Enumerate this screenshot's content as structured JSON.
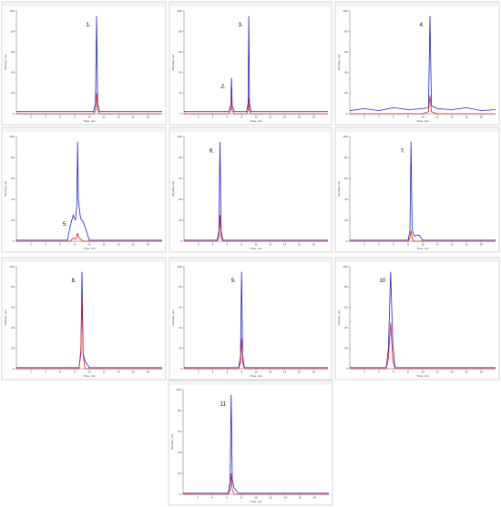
{
  "chart_data": [
    {
      "type": "line",
      "labels": [
        "1."
      ],
      "xlabel": "Time, min",
      "ylabel": "Intensity, cps",
      "xlim": [
        0,
        20
      ],
      "xticks": [
        2,
        4,
        6,
        8,
        10,
        12,
        14,
        16,
        18
      ],
      "ylim": [
        0,
        100
      ],
      "yticks": [
        0,
        20,
        40,
        60,
        80,
        100
      ],
      "x": [
        0,
        10.6,
        10.85,
        11,
        11.15,
        11.4,
        20
      ],
      "series": [
        {
          "color": "#2020d0",
          "values": [
            2,
            2,
            10,
            95,
            10,
            2,
            2
          ]
        },
        {
          "color": "#e02020",
          "values": [
            0,
            0,
            3,
            20,
            3,
            0,
            0
          ]
        }
      ]
    },
    {
      "type": "line",
      "labels": [
        "2.",
        "3."
      ],
      "xlabel": "Time, min",
      "ylabel": "Intensity, cps",
      "xlim": [
        0,
        20
      ],
      "xticks": [
        2,
        4,
        6,
        8,
        10,
        12,
        14,
        16,
        18
      ],
      "ylim": [
        0,
        100
      ],
      "yticks": [
        0,
        20,
        40,
        60,
        80,
        100
      ],
      "x": [
        0,
        6.2,
        6.5,
        6.6,
        6.7,
        7,
        8.7,
        8.9,
        9,
        9.1,
        9.3,
        20
      ],
      "series": [
        {
          "color": "#2020d0",
          "values": [
            2,
            2,
            8,
            35,
            8,
            2,
            2,
            10,
            95,
            10,
            2,
            2
          ]
        },
        {
          "color": "#e02020",
          "values": [
            0,
            0,
            3,
            18,
            3,
            0,
            0,
            3,
            15,
            3,
            0,
            0
          ]
        }
      ]
    },
    {
      "type": "line",
      "labels": [
        "4."
      ],
      "xlabel": "Time, min",
      "ylabel": "Intensity, cps",
      "xlim": [
        0,
        20
      ],
      "xticks": [
        2,
        4,
        6,
        8,
        10,
        12,
        14,
        16,
        18
      ],
      "ylim": [
        0,
        100
      ],
      "yticks": [
        0,
        20,
        40,
        60,
        80,
        100
      ],
      "x": [
        0,
        2,
        4,
        6,
        8,
        10,
        10.8,
        11,
        11.2,
        12,
        14,
        16,
        18,
        20
      ],
      "series": [
        {
          "color": "#2020d0",
          "values": [
            3,
            5,
            3,
            6,
            4,
            5,
            6,
            95,
            8,
            5,
            4,
            6,
            3,
            4
          ]
        },
        {
          "color": "#e02020",
          "values": [
            0,
            0,
            0,
            0,
            0,
            0,
            2,
            18,
            2,
            0,
            0,
            0,
            0,
            0
          ]
        }
      ]
    },
    {
      "type": "line",
      "labels": [
        "5."
      ],
      "xlabel": "Time, min",
      "ylabel": "Intensity, cps",
      "xlim": [
        0,
        20
      ],
      "xticks": [
        2,
        4,
        6,
        8,
        10,
        12,
        14,
        16,
        18
      ],
      "ylim": [
        0,
        100
      ],
      "yticks": [
        0,
        20,
        40,
        60,
        80,
        100
      ],
      "x": [
        0,
        7,
        7.4,
        7.8,
        8.1,
        8.3,
        8.4,
        8.5,
        8.8,
        9.2,
        9.6,
        10,
        20
      ],
      "series": [
        {
          "color": "#2020d0",
          "values": [
            1,
            1,
            15,
            25,
            20,
            35,
            95,
            40,
            22,
            18,
            10,
            1,
            1
          ]
        },
        {
          "color": "#e02020",
          "values": [
            0,
            0,
            0,
            3,
            2,
            5,
            8,
            4,
            2,
            0,
            0,
            0,
            0
          ]
        }
      ]
    },
    {
      "type": "line",
      "labels": [
        "6."
      ],
      "xlabel": "Time, min",
      "ylabel": "Intensity, cps",
      "xlim": [
        0,
        20
      ],
      "xticks": [
        2,
        4,
        6,
        8,
        10,
        12,
        14,
        16,
        18
      ],
      "ylim": [
        0,
        100
      ],
      "yticks": [
        0,
        20,
        40,
        60,
        80,
        100
      ],
      "x": [
        0,
        4.6,
        4.85,
        5,
        5.15,
        5.4,
        20
      ],
      "series": [
        {
          "color": "#2020d0",
          "values": [
            1,
            1,
            10,
            95,
            10,
            1,
            1
          ]
        },
        {
          "color": "#e02020",
          "values": [
            0,
            0,
            4,
            25,
            4,
            0,
            0
          ]
        }
      ]
    },
    {
      "type": "line",
      "labels": [
        "7."
      ],
      "xlabel": "Time, min",
      "ylabel": "Intensity, cps",
      "xlim": [
        0,
        20
      ],
      "xticks": [
        2,
        4,
        6,
        8,
        10,
        12,
        14,
        16,
        18
      ],
      "ylim": [
        0,
        100
      ],
      "yticks": [
        0,
        20,
        40,
        60,
        80,
        100
      ],
      "x": [
        0,
        8,
        8.25,
        8.4,
        8.55,
        8.8,
        9.5,
        10,
        20
      ],
      "series": [
        {
          "color": "#2020d0",
          "values": [
            1,
            1,
            10,
            95,
            12,
            5,
            6,
            1,
            1
          ]
        },
        {
          "color": "#e02020",
          "values": [
            0,
            0,
            3,
            10,
            3,
            0,
            0,
            0,
            0
          ]
        }
      ]
    },
    {
      "type": "line",
      "labels": [
        "8."
      ],
      "xlabel": "Time, min",
      "ylabel": "Intensity, cps",
      "xlim": [
        0,
        20
      ],
      "xticks": [
        2,
        4,
        6,
        8,
        10,
        12,
        14,
        16,
        18
      ],
      "ylim": [
        0,
        100
      ],
      "yticks": [
        0,
        20,
        40,
        60,
        80,
        100
      ],
      "x": [
        0,
        8.6,
        8.85,
        9,
        9.15,
        9.4,
        10,
        20
      ],
      "series": [
        {
          "color": "#2020d0",
          "values": [
            1,
            1,
            15,
            95,
            15,
            8,
            1,
            1
          ]
        },
        {
          "color": "#e02020",
          "values": [
            0,
            0,
            20,
            70,
            15,
            0,
            0,
            0
          ]
        }
      ]
    },
    {
      "type": "line",
      "labels": [
        "9."
      ],
      "xlabel": "Time, min",
      "ylabel": "Intensity, cps",
      "xlim": [
        0,
        20
      ],
      "xticks": [
        2,
        4,
        6,
        8,
        10,
        12,
        14,
        16,
        18
      ],
      "ylim": [
        0,
        100
      ],
      "yticks": [
        0,
        20,
        40,
        60,
        80,
        100
      ],
      "x": [
        0,
        7.6,
        7.85,
        8,
        8.15,
        8.4,
        20
      ],
      "series": [
        {
          "color": "#2020d0",
          "values": [
            1,
            1,
            12,
            95,
            12,
            1,
            1
          ]
        },
        {
          "color": "#e02020",
          "values": [
            0,
            0,
            6,
            30,
            6,
            0,
            0
          ]
        }
      ]
    },
    {
      "type": "line",
      "labels": [
        "10"
      ],
      "xlabel": "Time, min",
      "ylabel": "Intensity, cps",
      "xlim": [
        0,
        20
      ],
      "xticks": [
        2,
        4,
        6,
        8,
        10,
        12,
        14,
        16,
        18
      ],
      "ylim": [
        0,
        100
      ],
      "yticks": [
        0,
        20,
        40,
        60,
        80,
        100
      ],
      "x": [
        0,
        5,
        5.3,
        5.6,
        5.9,
        6.2,
        20
      ],
      "series": [
        {
          "color": "#2020d0",
          "values": [
            1,
            1,
            20,
            95,
            25,
            1,
            1
          ]
        },
        {
          "color": "#e02020",
          "values": [
            0,
            0,
            10,
            45,
            8,
            0,
            0
          ]
        }
      ]
    },
    {
      "type": "line",
      "labels": [
        "11"
      ],
      "xlabel": "Time, min",
      "ylabel": "Intensity, cps",
      "xlim": [
        0,
        20
      ],
      "xticks": [
        2,
        4,
        6,
        8,
        10,
        12,
        14,
        16,
        18
      ],
      "ylim": [
        0,
        100
      ],
      "yticks": [
        0,
        20,
        40,
        60,
        80,
        100
      ],
      "x": [
        0,
        6.2,
        6.45,
        6.6,
        6.75,
        7,
        7.6,
        20
      ],
      "series": [
        {
          "color": "#2020d0",
          "values": [
            1,
            1,
            12,
            95,
            14,
            6,
            1,
            1
          ]
        },
        {
          "color": "#e02020",
          "values": [
            0,
            0,
            4,
            20,
            4,
            0,
            0,
            0
          ]
        }
      ]
    }
  ]
}
